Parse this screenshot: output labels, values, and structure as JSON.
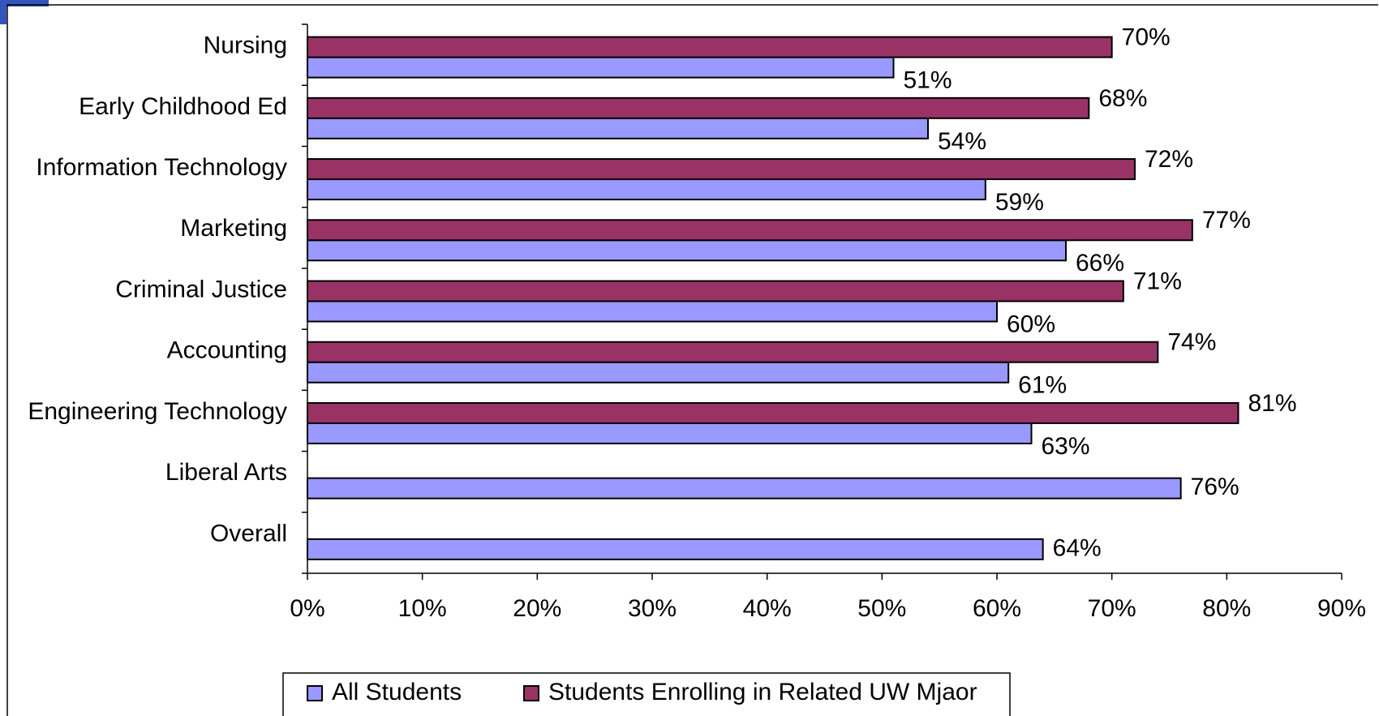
{
  "chart_data": {
    "type": "bar",
    "orientation": "horizontal",
    "categories": [
      "Nursing",
      "Early Childhood Ed",
      "Information Technology",
      "Marketing",
      "Criminal Justice",
      "Accounting",
      "Engineering Technology",
      "Liberal Arts",
      "Overall"
    ],
    "series": [
      {
        "name": "All Students",
        "color": "#9999ff",
        "values": [
          51,
          54,
          59,
          66,
          60,
          61,
          63,
          76,
          64
        ],
        "value_labels": [
          "51%",
          "54%",
          "59%",
          "66%",
          "60%",
          "61%",
          "63%",
          "76%",
          "64%"
        ]
      },
      {
        "name": "Students Enrolling in Related UW Mjaor",
        "color": "#993366",
        "values": [
          70,
          68,
          72,
          77,
          71,
          74,
          81,
          null,
          null
        ],
        "value_labels": [
          "70%",
          "68%",
          "72%",
          "77%",
          "71%",
          "74%",
          "81%",
          null,
          null
        ]
      }
    ],
    "xlim": [
      0,
      90
    ],
    "xticks": [
      {
        "value": 0,
        "label": "0%"
      },
      {
        "value": 10,
        "label": "10%"
      },
      {
        "value": 20,
        "label": "20%"
      },
      {
        "value": 30,
        "label": "30%"
      },
      {
        "value": 40,
        "label": "40%"
      },
      {
        "value": 50,
        "label": "50%"
      },
      {
        "value": 60,
        "label": "60%"
      },
      {
        "value": 70,
        "label": "70%"
      },
      {
        "value": 80,
        "label": "80%"
      },
      {
        "value": 90,
        "label": "90%"
      }
    ],
    "legend": "bottom"
  }
}
